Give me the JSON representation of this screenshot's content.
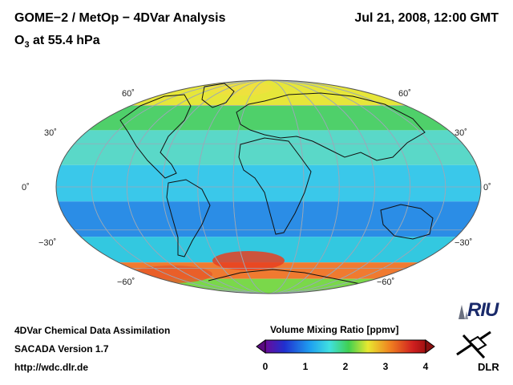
{
  "header": {
    "title": "GOME−2 / MetOp − 4DVar Analysis",
    "subtitle_prefix": "O",
    "subtitle_sub": "3",
    "subtitle_suffix": " at 55.4 hPa",
    "datetime": "Jul 21, 2008, 12:00 GMT"
  },
  "map": {
    "projection": "Mollweide",
    "lat_labels": {
      "n60_left": "60˚",
      "n60_right": "60˚",
      "n30_left": "30˚",
      "n30_right": "30˚",
      "eq_left": "0˚",
      "eq_right": "0˚",
      "s30_left": "−30˚",
      "s30_right": "−30˚",
      "s60_left": "−60˚",
      "s60_right": "−60˚"
    },
    "field_bands": [
      {
        "lat_range": [
          60,
          90
        ],
        "color": "#e6e63a"
      },
      {
        "lat_range": [
          40,
          60
        ],
        "color": "#4fd06a"
      },
      {
        "lat_range": [
          15,
          40
        ],
        "color": "#5ad8c8"
      },
      {
        "lat_range": [
          -10,
          15
        ],
        "color": "#3ac8ea"
      },
      {
        "lat_range": [
          -35,
          -10
        ],
        "color": "#2b8de6"
      },
      {
        "lat_range": [
          -55,
          -35
        ],
        "color": "#33c8e0"
      },
      {
        "lat_range": [
          -70,
          -55
        ],
        "color": "#f07a30"
      },
      {
        "lat_range": [
          -90,
          -70
        ],
        "color": "#7ad84a"
      }
    ]
  },
  "colorbar": {
    "title": "Volume Mixing Ratio [ppmv]",
    "ticks": [
      "0",
      "1",
      "2",
      "3",
      "4"
    ],
    "range": [
      0,
      4
    ]
  },
  "footer": {
    "line1": "4DVar Chemical Data Assimilation",
    "line2": "SACADA Version 1.7",
    "url": "http://wdc.dlr.de"
  },
  "logos": {
    "riu": "RIU",
    "dlr": "DLR"
  }
}
